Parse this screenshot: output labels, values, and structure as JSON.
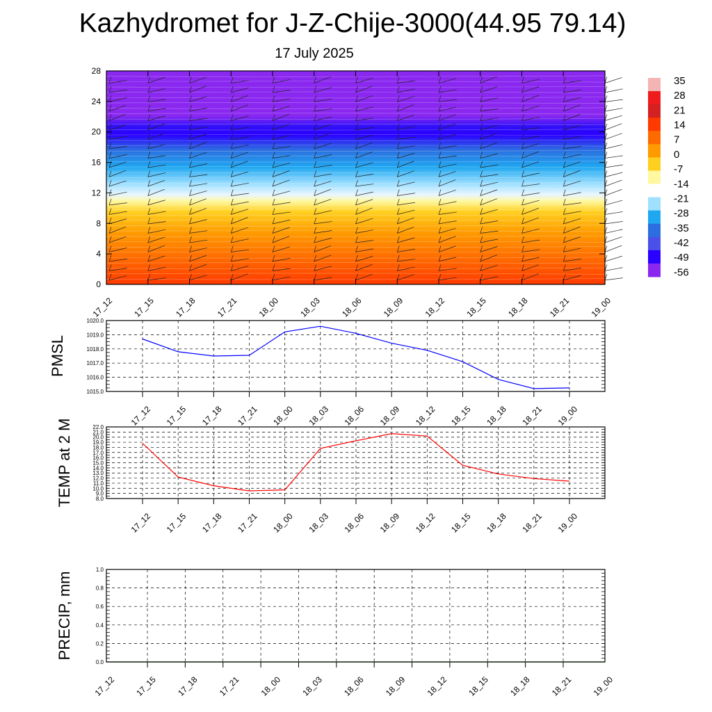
{
  "page": {
    "title": "Kazhydromet for J-Z-Chije-3000(44.95 79.14)",
    "subtitle": "17 July 2025"
  },
  "colors": {
    "pmsl_line": "#0000ff",
    "temp_line": "#ff0000",
    "precip_line": "#006400",
    "grid": "#000000"
  },
  "chart_data": [
    {
      "type": "heatmap",
      "title": "",
      "ylim": [
        0,
        28
      ],
      "y_ticks": [
        "0",
        "4",
        "8",
        "12",
        "16",
        "20",
        "24",
        "28"
      ],
      "x_ticks": [
        "17_12",
        "17_15",
        "17_18",
        "17_21",
        "18_00",
        "18_03",
        "18_06",
        "18_09",
        "18_12",
        "18_15",
        "18_18",
        "18_21",
        "19_00"
      ],
      "colorbar": {
        "labels": [
          "35",
          "28",
          "21",
          "14",
          "7",
          "0",
          "-7",
          "-14",
          "-21",
          "-28",
          "-35",
          "-42",
          "-49",
          "-56"
        ],
        "colors": [
          "#f4b4b4",
          "#ee1c1c",
          "#d42020",
          "#ff3a00",
          "#ff6a00",
          "#ff9a00",
          "#ffcf20",
          "#fff8a0",
          "#ffffff",
          "#9fe0ff",
          "#1fa7f0",
          "#2c6ee0",
          "#4a50e8",
          "#2a00ff",
          "#8a28f0"
        ]
      },
      "wind_barbs": true
    },
    {
      "type": "line",
      "ylabel": "PMSL",
      "ylim": [
        1015.0,
        1020.0
      ],
      "y_ticks": [
        "1015.0",
        "1016.0",
        "1017.0",
        "1018.0",
        "1019.0",
        "1020.0"
      ],
      "x": [
        "17_12",
        "17_15",
        "17_18",
        "17_21",
        "18_00",
        "18_03",
        "18_06",
        "18_09",
        "18_12",
        "18_15",
        "18_18",
        "18_21",
        "19_00"
      ],
      "series": [
        {
          "values": [
            1018.7,
            1017.8,
            1017.5,
            1017.55,
            1019.2,
            1019.6,
            1019.1,
            1018.4,
            1017.9,
            1017.1,
            1015.85,
            1015.2,
            1015.25
          ]
        }
      ],
      "grid": true
    },
    {
      "type": "line",
      "ylabel": "TEMP at 2 M",
      "ylim": [
        8.0,
        22.0
      ],
      "y_ticks": [
        "8.0",
        "9.0",
        "10.0",
        "11.0",
        "12.0",
        "13.0",
        "14.0",
        "15.0",
        "16.0",
        "17.0",
        "18.0",
        "19.0",
        "20.0",
        "21.0",
        "22.0"
      ],
      "x": [
        "17_12",
        "17_15",
        "17_18",
        "17_21",
        "18_00",
        "18_03",
        "18_06",
        "18_09",
        "18_12",
        "18_15",
        "18_18",
        "18_21",
        "19_00"
      ],
      "series": [
        {
          "values": [
            18.8,
            12.2,
            10.5,
            9.5,
            9.7,
            17.8,
            19.3,
            20.7,
            20.2,
            14.5,
            12.8,
            11.9,
            11.4
          ]
        }
      ],
      "grid": true
    },
    {
      "type": "line",
      "ylabel": "PRECIP, mm",
      "ylim": [
        0.0,
        1.0
      ],
      "y_ticks": [
        "0.0",
        "0.2",
        "0.4",
        "0.6",
        "0.8",
        "1.0"
      ],
      "x_ticks": [
        "17_12",
        "17_15",
        "17_18",
        "17_21",
        "18_00",
        "18_03",
        "18_06",
        "18_09",
        "18_12",
        "18_15",
        "18_18",
        "18_21",
        "19_00"
      ],
      "x": [
        "17_12",
        "17_15",
        "17_18",
        "17_21",
        "18_00",
        "18_03",
        "18_06",
        "18_09",
        "18_12",
        "18_15",
        "18_18",
        "18_21",
        "19_00"
      ],
      "series": [
        {
          "values": [
            0,
            0,
            0,
            0,
            0,
            0,
            0,
            0,
            0,
            0,
            0,
            0,
            0
          ]
        }
      ],
      "grid": true
    }
  ]
}
